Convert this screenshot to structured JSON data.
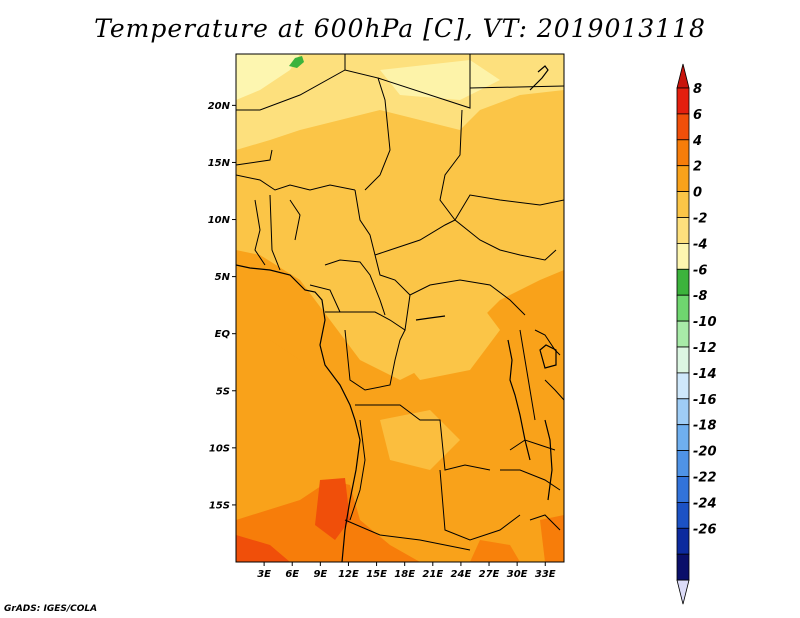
{
  "title": "Temperature at 600hPa [C], VT: 2019013118",
  "credit": "GrADS: IGES/COLA",
  "map": {
    "lat_ticks": [
      "20N",
      "15N",
      "10N",
      "5N",
      "EQ",
      "5S",
      "10S",
      "15S"
    ],
    "lat_values": [
      20,
      15,
      10,
      5,
      0,
      -5,
      -10,
      -15
    ],
    "lon_ticks": [
      "3E",
      "6E",
      "9E",
      "12E",
      "15E",
      "18E",
      "21E",
      "24E",
      "27E",
      "30E",
      "33E"
    ],
    "lon_values": [
      3,
      6,
      9,
      12,
      15,
      18,
      21,
      24,
      27,
      30,
      33
    ],
    "lon_range": [
      0,
      35
    ],
    "lat_range": [
      -20,
      24.5
    ]
  },
  "colorbar": {
    "labels": [
      "8",
      "6",
      "4",
      "2",
      "0",
      "-2",
      "-4",
      "-6",
      "-8",
      "-10",
      "-12",
      "-14",
      "-16",
      "-18",
      "-20",
      "-22",
      "-24",
      "-26"
    ],
    "colors": [
      "#e41f0e",
      "#f04f0a",
      "#f77d0a",
      "#f9a21a",
      "#fbc547",
      "#fde07d",
      "#fdf6b0",
      "#3cb33c",
      "#6fd66f",
      "#a8eba8",
      "#dcf6e2",
      "#cfe8fb",
      "#9fcdf6",
      "#6fafef",
      "#4f93e6",
      "#3273da",
      "#1c52c4",
      "#0c2a9e",
      "#0a0f6a"
    ],
    "top_color": "#c8140c",
    "bottom_color": "#dcdcf8"
  }
}
